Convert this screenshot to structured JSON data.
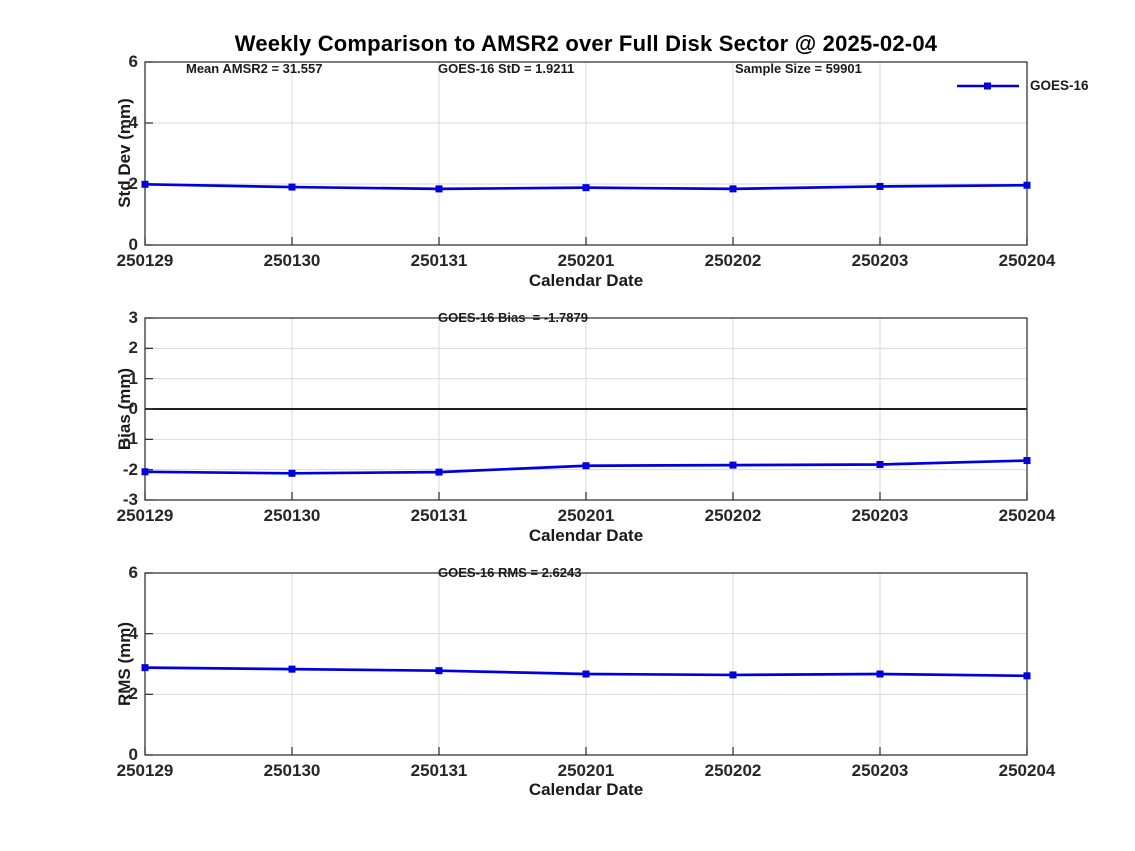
{
  "title": "Weekly Comparison to AMSR2 over Full Disk Sector @ 2025-02-04",
  "x_axis_label": "Calendar Date",
  "legend": {
    "label": "GOES-16",
    "position": "northeast"
  },
  "colors": {
    "series_line": "#0000dd",
    "grid": "#d9d9d9",
    "axis": "#262626",
    "zero_line": "#000000",
    "text": "#1a1a1a"
  },
  "chart_data": [
    {
      "type": "line",
      "title": "",
      "annotations": [
        "Mean AMSR2 = 31.557",
        "GOES-16 StD = 1.9211",
        "Sample Size = 59901"
      ],
      "xlabel": "Calendar Date",
      "ylabel": "Std Dev (mm)",
      "ylim": [
        0,
        6
      ],
      "yticks": [
        0,
        2,
        4,
        6
      ],
      "grid_yticks": [
        2,
        4
      ],
      "zero_line": false,
      "grid": true,
      "categories": [
        "250129",
        "250130",
        "250131",
        "250201",
        "250202",
        "250203",
        "250204"
      ],
      "series": [
        {
          "name": "GOES-16",
          "marker": "square",
          "values": [
            1.99,
            1.9,
            1.84,
            1.88,
            1.84,
            1.92,
            1.96
          ]
        }
      ]
    },
    {
      "type": "line",
      "title": "",
      "annotations": [
        "GOES-16 Bias  = -1.7879"
      ],
      "xlabel": "Calendar Date",
      "ylabel": "Bias (mm)",
      "ylim": [
        -3,
        3
      ],
      "yticks": [
        -3,
        -2,
        -1,
        0,
        1,
        2,
        3
      ],
      "grid_yticks": [
        -2,
        -1,
        1,
        2
      ],
      "zero_line": true,
      "grid": true,
      "categories": [
        "250129",
        "250130",
        "250131",
        "250201",
        "250202",
        "250203",
        "250204"
      ],
      "series": [
        {
          "name": "GOES-16",
          "marker": "square",
          "values": [
            -2.07,
            -2.12,
            -2.08,
            -1.87,
            -1.85,
            -1.83,
            -1.7
          ]
        }
      ]
    },
    {
      "type": "line",
      "title": "",
      "annotations": [
        "GOES-16 RMS = 2.6243"
      ],
      "xlabel": "Calendar Date",
      "ylabel": "RMS (mm)",
      "ylim": [
        0,
        6
      ],
      "yticks": [
        0,
        2,
        4,
        6
      ],
      "grid_yticks": [
        2,
        4
      ],
      "zero_line": false,
      "grid": true,
      "categories": [
        "250129",
        "250130",
        "250131",
        "250201",
        "250202",
        "250203",
        "250204"
      ],
      "series": [
        {
          "name": "GOES-16",
          "marker": "square",
          "values": [
            2.88,
            2.83,
            2.78,
            2.67,
            2.64,
            2.67,
            2.61
          ]
        }
      ]
    }
  ]
}
